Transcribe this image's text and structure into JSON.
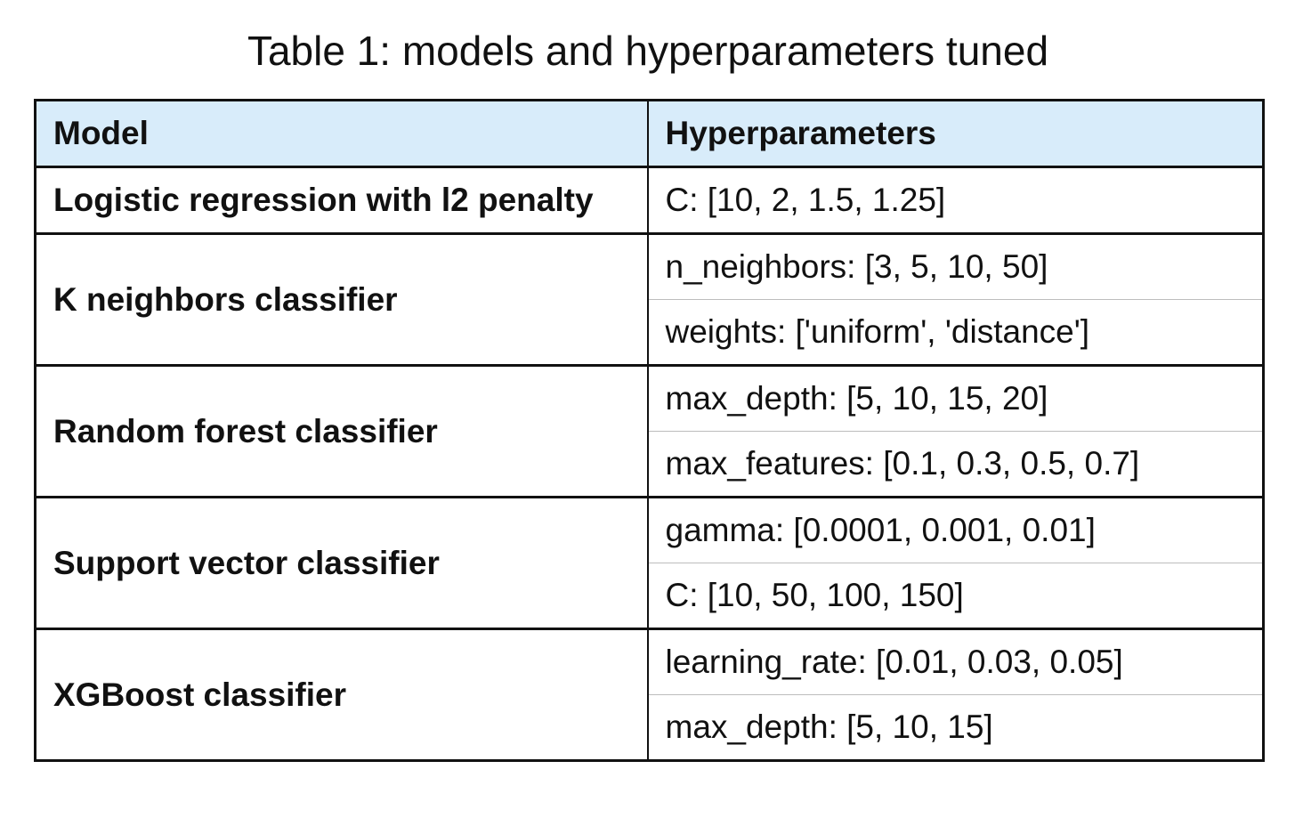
{
  "title": "Table 1: models and hyperparameters tuned",
  "table": {
    "headers": [
      "Model",
      "Hyperparameters"
    ],
    "rows": [
      {
        "model": "Logistic regression with l2 penalty",
        "hyperparameters": [
          "C: [10, 2, 1.5, 1.25]"
        ]
      },
      {
        "model": "K neighbors classifier",
        "hyperparameters": [
          "n_neighbors: [3, 5, 10, 50]",
          "weights: ['uniform', 'distance']"
        ]
      },
      {
        "model": "Random forest classifier",
        "hyperparameters": [
          "max_depth: [5, 10, 15, 20]",
          "max_features: [0.1, 0.3, 0.5, 0.7]"
        ]
      },
      {
        "model": "Support vector classifier",
        "hyperparameters": [
          "gamma: [0.0001, 0.001, 0.01]",
          "C: [10, 50, 100, 150]"
        ]
      },
      {
        "model": "XGBoost classifier",
        "hyperparameters": [
          "learning_rate: [0.01, 0.03, 0.05]",
          "max_depth: [5, 10, 15]"
        ]
      }
    ]
  },
  "colors": {
    "header_background": "#d8ecfa",
    "border": "#111111",
    "inner_divider": "#bdbdbd"
  }
}
